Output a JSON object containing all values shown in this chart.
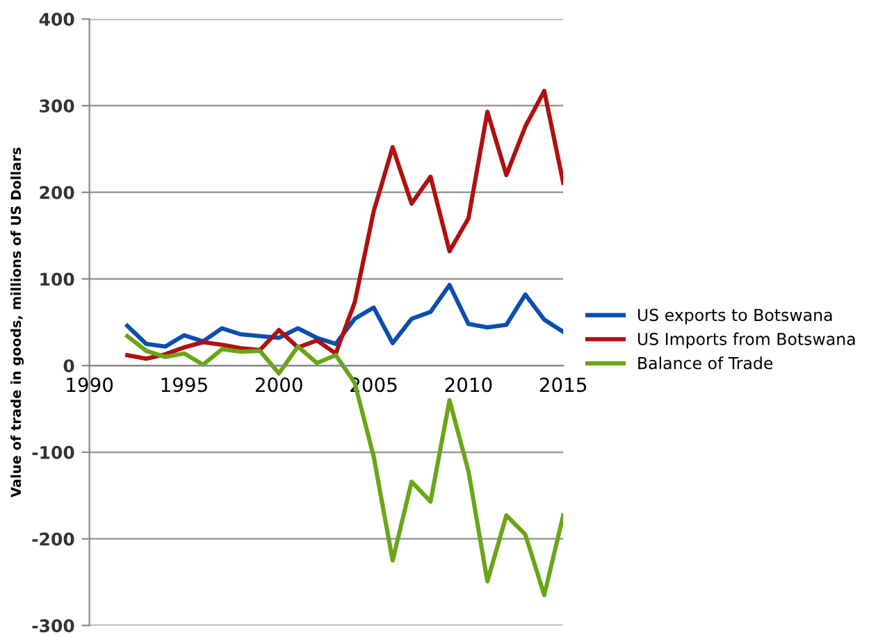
{
  "chart_data": {
    "type": "line",
    "ylabel": "Value of trade in goods, millions of US Dollars",
    "x": [
      1992,
      1993,
      1994,
      1995,
      1996,
      1997,
      1998,
      1999,
      2000,
      2001,
      2002,
      2003,
      2004,
      2005,
      2006,
      2007,
      2008,
      2009,
      2010,
      2011,
      2012,
      2013,
      2014,
      2015
    ],
    "series": [
      {
        "name": "US exports to Botswana",
        "color": "#0b4eb0",
        "values": [
          46,
          25,
          22,
          35,
          28,
          43,
          36,
          34,
          32,
          43,
          32,
          25,
          54,
          67,
          26,
          54,
          62,
          93,
          48,
          44,
          47,
          82,
          53,
          39
        ]
      },
      {
        "name": "US Imports from Botswana",
        "color": "#b01010",
        "values": [
          12,
          8,
          13,
          21,
          27,
          24,
          20,
          18,
          41,
          21,
          29,
          14,
          73,
          178,
          252,
          187,
          218,
          132,
          170,
          293,
          220,
          276,
          317,
          211
        ]
      },
      {
        "name": "Balance of Trade",
        "color": "#6aa516",
        "values": [
          34,
          17,
          10,
          14,
          1,
          19,
          16,
          17,
          -9,
          22,
          3,
          12,
          -20,
          -105,
          -225,
          -134,
          -157,
          -40,
          -122,
          -249,
          -173,
          -195,
          -265,
          -173
        ]
      }
    ],
    "xlim": [
      1990,
      2015
    ],
    "xticks": [
      1990,
      1995,
      2000,
      2005,
      2010,
      2015
    ],
    "ylim": [
      -300,
      400
    ],
    "yticks": [
      -300,
      -200,
      -100,
      0,
      100,
      200,
      300,
      400
    ],
    "grid": "y",
    "legend": "right",
    "marker": "none",
    "line_style": "solid"
  }
}
